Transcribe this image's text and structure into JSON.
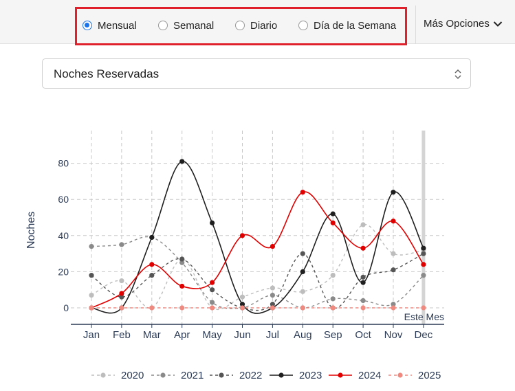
{
  "period_options": [
    {
      "label": "Mensual",
      "checked": true
    },
    {
      "label": "Semanal",
      "checked": false
    },
    {
      "label": "Diario",
      "checked": false
    },
    {
      "label": "Día de la Semana",
      "checked": false
    }
  ],
  "more_options_label": "Más Opciones",
  "metric_select": {
    "value": "Noches Reservadas"
  },
  "chart_data": {
    "type": "line",
    "ylabel": "Noches",
    "xlabel": "",
    "categories": [
      "Jan",
      "Feb",
      "Mar",
      "Apr",
      "May",
      "Jun",
      "Jul",
      "Aug",
      "Sep",
      "Oct",
      "Nov",
      "Dec"
    ],
    "ylim": [
      -6,
      100
    ],
    "yticks": [
      0,
      20,
      40,
      60,
      80
    ],
    "grid": true,
    "legend_position": "bottom",
    "current_marker_label": "Este Mes",
    "current_marker_index": 11,
    "series": [
      {
        "name": "2020",
        "color": "#bdbdbd",
        "dash": "4,4",
        "values": [
          7,
          15,
          0,
          27,
          0,
          6,
          11,
          9,
          18,
          46,
          30,
          32
        ]
      },
      {
        "name": "2021",
        "color": "#8a8a8a",
        "dash": "4,4",
        "values": [
          34,
          35,
          39,
          25,
          3,
          0,
          7,
          0,
          5,
          4,
          2,
          18
        ]
      },
      {
        "name": "2022",
        "color": "#555555",
        "dash": "4,4",
        "values": [
          18,
          6,
          18,
          27,
          10,
          0,
          2,
          30,
          0,
          17,
          21,
          30
        ]
      },
      {
        "name": "2023",
        "color": "#1f1f1f",
        "dash": "",
        "values": [
          0,
          0,
          39,
          81,
          47,
          2,
          0,
          20,
          52,
          14,
          64,
          33
        ]
      },
      {
        "name": "2024",
        "color": "#e00000",
        "dash": "",
        "values": [
          0,
          8,
          24,
          12,
          14,
          40,
          34,
          64,
          47,
          33,
          48,
          24
        ]
      },
      {
        "name": "2025",
        "color": "#ef8a80",
        "dash": "4,4",
        "values": [
          0,
          0,
          0,
          0,
          0,
          0,
          0,
          0,
          0,
          0,
          0,
          0
        ]
      }
    ]
  }
}
